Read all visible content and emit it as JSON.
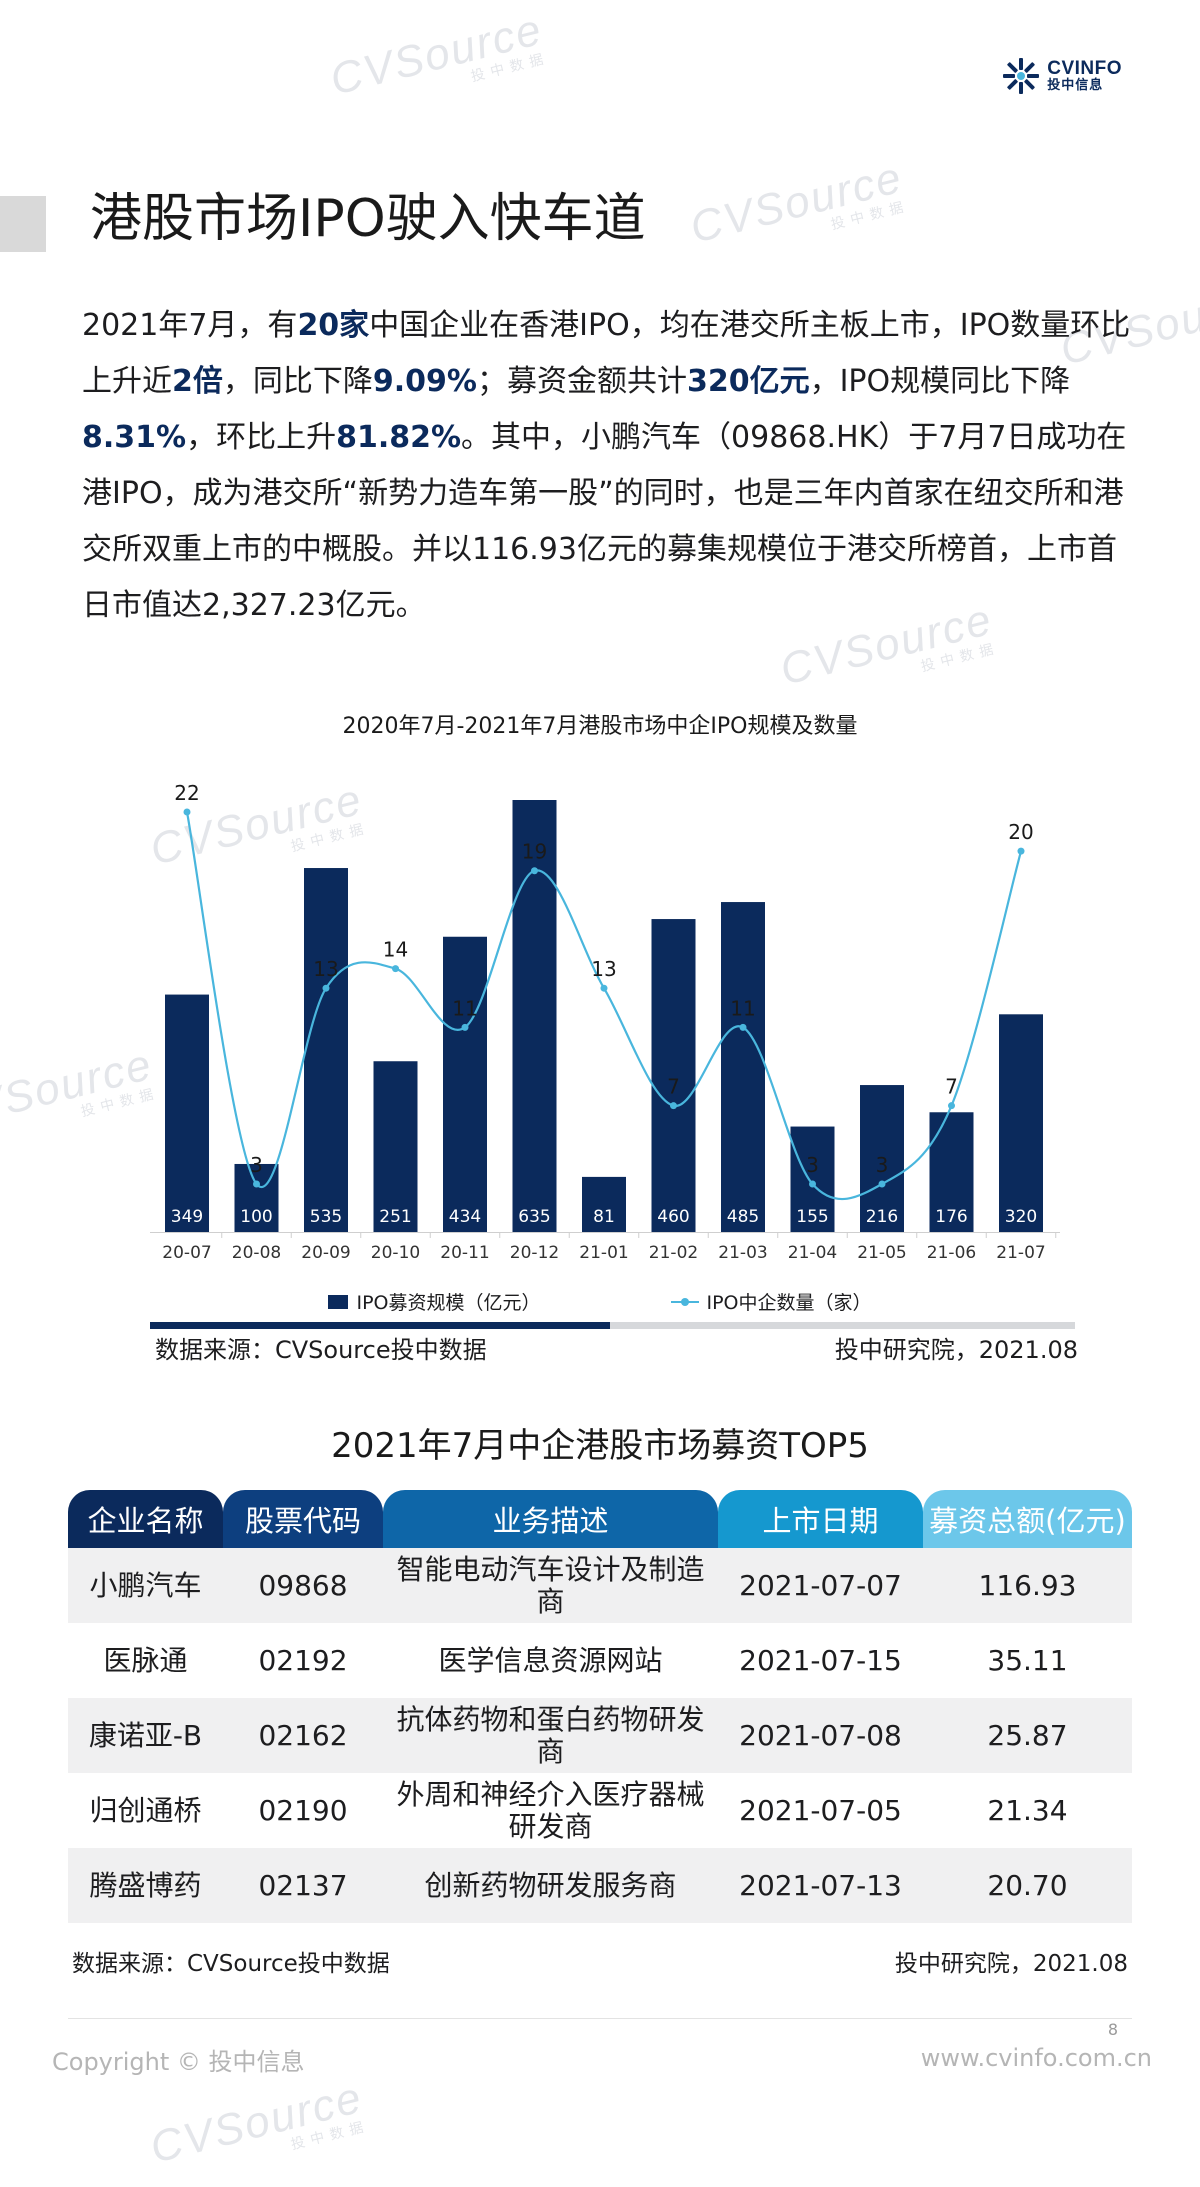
{
  "brand": {
    "name_en": "CVINFO",
    "name_cn": "投中信息"
  },
  "watermark": {
    "text": "CVSource",
    "sub": "投中数据"
  },
  "title": "港股市场IPO驶入快车道",
  "paragraph": [
    {
      "t": "2021年7月，有",
      "b": false
    },
    {
      "t": "20家",
      "b": true
    },
    {
      "t": "中国企业在香港IPO，均在港交所主板上市，IPO数量环比上升近",
      "b": false
    },
    {
      "t": "2倍",
      "b": true
    },
    {
      "t": "，同比下降",
      "b": false
    },
    {
      "t": "9.09%",
      "b": true
    },
    {
      "t": "；募资金额共计",
      "b": false
    },
    {
      "t": "320亿元",
      "b": true
    },
    {
      "t": "，IPO规模同比下降",
      "b": false
    },
    {
      "t": "8.31%",
      "b": true
    },
    {
      "t": "，环比上升",
      "b": false
    },
    {
      "t": "81.82%",
      "b": true
    },
    {
      "t": "。其中，小鹏汽车（09868.HK）于7月7日成功在港IPO，成为港交所“新势力造车第一股”的同时，也是三年内首家在纽交所和港交所双重上市的中概股。并以116.93亿元的募集规模位于港交所榜首，上市首日市值达2,327.23亿元。",
      "b": false
    }
  ],
  "chart_data": {
    "type": "bar",
    "title": "2020年7月-2021年7月港股市场中企IPO规模及数量",
    "categories": [
      "20-07",
      "20-08",
      "20-09",
      "20-10",
      "20-11",
      "20-12",
      "21-01",
      "21-02",
      "21-03",
      "21-04",
      "21-05",
      "21-06",
      "21-07"
    ],
    "series": [
      {
        "name": "IPO募资规模（亿元）",
        "type": "bar",
        "color": "#0b2a5c",
        "values": [
          349,
          100,
          535,
          251,
          434,
          635,
          81,
          460,
          485,
          155,
          216,
          176,
          320
        ]
      },
      {
        "name": "IPO中企数量（家）",
        "type": "line",
        "color": "#49b6dd",
        "values": [
          22,
          3,
          13,
          14,
          11,
          19,
          13,
          7,
          11,
          3,
          3,
          7,
          20
        ]
      }
    ],
    "legend": "bottom"
  },
  "chart_source_left": "数据来源：CVSource投中数据",
  "chart_source_right": "投中研究院，2021.08",
  "table": {
    "title": "2021年7月中企港股市场募资TOP5",
    "headers": [
      "企业名称",
      "股票代码",
      "业务描述",
      "上市日期",
      "募资总额(亿元)"
    ],
    "header_colors": [
      "#0b2a5c",
      "#0d3f7f",
      "#0e66a8",
      "#1598cf",
      "#6cc7ea"
    ],
    "rows": [
      [
        "小鹏汽车",
        "09868",
        "智能电动汽车设计及制造商",
        "2021-07-07",
        "116.93"
      ],
      [
        "医脉通",
        "02192",
        "医学信息资源网站",
        "2021-07-15",
        "35.11"
      ],
      [
        "康诺亚-B",
        "02162",
        "抗体药物和蛋白药物研发商",
        "2021-07-08",
        "25.87"
      ],
      [
        "归创通桥",
        "02190",
        "外周和神经介入医疗器械研发商",
        "2021-07-05",
        "21.34"
      ],
      [
        "腾盛博药",
        "02137",
        "创新药物研发服务商",
        "2021-07-13",
        "20.70"
      ]
    ]
  },
  "table_source_left": "数据来源：CVSource投中数据",
  "table_source_right": "投中研究院，2021.08",
  "page_number": "8",
  "copyright": "Copyright © 投中信息",
  "website": "www.cvinfo.com.cn"
}
